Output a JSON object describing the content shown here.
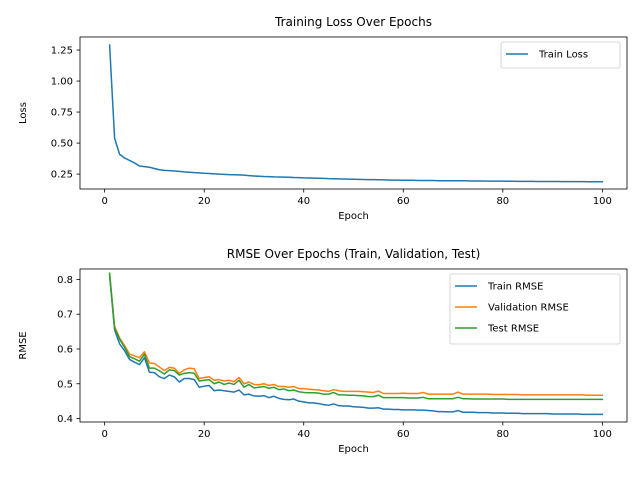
{
  "chart_data": [
    {
      "type": "line",
      "title": "Training Loss Over Epochs",
      "xlabel": "Epoch",
      "ylabel": "Loss",
      "xlim": [
        -4.95,
        104.95
      ],
      "ylim": [
        0.13,
        1.355
      ],
      "xticks": [
        0,
        20,
        40,
        60,
        80,
        100
      ],
      "yticks": [
        0.25,
        0.5,
        0.75,
        1.0,
        1.25
      ],
      "ytick_labels": [
        "0.25",
        "0.50",
        "0.75",
        "1.00",
        "1.25"
      ],
      "legend": "top-right",
      "colors": {
        "Train Loss": "#1f77b4"
      },
      "series": [
        {
          "name": "Train Loss",
          "x": [
            1,
            2,
            3,
            4,
            5,
            6,
            7,
            8,
            9,
            10,
            11,
            12,
            13,
            14,
            15,
            16,
            17,
            18,
            19,
            20,
            21,
            22,
            23,
            24,
            25,
            26,
            27,
            28,
            29,
            30,
            31,
            32,
            33,
            34,
            35,
            36,
            37,
            38,
            39,
            40,
            41,
            42,
            43,
            44,
            45,
            46,
            47,
            48,
            49,
            50,
            51,
            52,
            53,
            54,
            55,
            56,
            57,
            58,
            59,
            60,
            61,
            62,
            63,
            64,
            65,
            66,
            67,
            68,
            69,
            70,
            71,
            72,
            73,
            74,
            75,
            76,
            77,
            78,
            79,
            80,
            81,
            82,
            83,
            84,
            85,
            86,
            87,
            88,
            89,
            90,
            91,
            92,
            93,
            94,
            95,
            96,
            97,
            98,
            99,
            100
          ],
          "values": [
            1.29,
            0.54,
            0.41,
            0.38,
            0.36,
            0.34,
            0.315,
            0.31,
            0.305,
            0.295,
            0.285,
            0.28,
            0.278,
            0.275,
            0.272,
            0.268,
            0.265,
            0.262,
            0.26,
            0.257,
            0.255,
            0.252,
            0.25,
            0.248,
            0.246,
            0.245,
            0.244,
            0.242,
            0.238,
            0.235,
            0.233,
            0.231,
            0.23,
            0.228,
            0.227,
            0.226,
            0.225,
            0.223,
            0.222,
            0.22,
            0.219,
            0.218,
            0.217,
            0.216,
            0.214,
            0.213,
            0.212,
            0.211,
            0.21,
            0.209,
            0.208,
            0.207,
            0.206,
            0.206,
            0.205,
            0.204,
            0.203,
            0.202,
            0.202,
            0.201,
            0.2,
            0.2,
            0.199,
            0.199,
            0.198,
            0.198,
            0.197,
            0.197,
            0.196,
            0.196,
            0.197,
            0.196,
            0.195,
            0.194,
            0.194,
            0.194,
            0.193,
            0.193,
            0.193,
            0.193,
            0.192,
            0.192,
            0.191,
            0.191,
            0.191,
            0.191,
            0.19,
            0.19,
            0.19,
            0.19,
            0.19,
            0.189,
            0.189,
            0.189,
            0.189,
            0.189,
            0.188,
            0.188,
            0.188,
            0.188
          ]
        }
      ]
    },
    {
      "type": "line",
      "title": "RMSE Over Epochs (Train, Validation, Test)",
      "xlabel": "Epoch",
      "ylabel": "RMSE",
      "xlim": [
        -4.95,
        104.95
      ],
      "ylim": [
        0.39,
        0.83
      ],
      "xticks": [
        0,
        20,
        40,
        60,
        80,
        100
      ],
      "yticks": [
        0.4,
        0.5,
        0.6,
        0.7,
        0.8
      ],
      "ytick_labels": [
        "0.4",
        "0.5",
        "0.6",
        "0.7",
        "0.8"
      ],
      "legend": "top-right",
      "colors": {
        "Train RMSE": "#1f77b4",
        "Validation RMSE": "#ff7f0e",
        "Test RMSE": "#2ca02c"
      },
      "series": [
        {
          "name": "Train RMSE",
          "x": [
            1,
            2,
            3,
            4,
            5,
            6,
            7,
            8,
            9,
            10,
            11,
            12,
            13,
            14,
            15,
            16,
            17,
            18,
            19,
            20,
            21,
            22,
            23,
            24,
            25,
            26,
            27,
            28,
            29,
            30,
            31,
            32,
            33,
            34,
            35,
            36,
            37,
            38,
            39,
            40,
            41,
            42,
            43,
            44,
            45,
            46,
            47,
            48,
            49,
            50,
            51,
            52,
            53,
            54,
            55,
            56,
            57,
            58,
            59,
            60,
            61,
            62,
            63,
            64,
            65,
            66,
            67,
            68,
            69,
            70,
            71,
            72,
            73,
            74,
            75,
            76,
            77,
            78,
            79,
            80,
            81,
            82,
            83,
            84,
            85,
            86,
            87,
            88,
            89,
            90,
            91,
            92,
            93,
            94,
            95,
            96,
            97,
            98,
            99,
            100
          ],
          "values": [
            0.81,
            0.655,
            0.615,
            0.595,
            0.57,
            0.562,
            0.555,
            0.575,
            0.533,
            0.532,
            0.52,
            0.515,
            0.525,
            0.52,
            0.505,
            0.515,
            0.515,
            0.512,
            0.49,
            0.493,
            0.495,
            0.48,
            0.482,
            0.48,
            0.478,
            0.476,
            0.482,
            0.468,
            0.47,
            0.465,
            0.464,
            0.466,
            0.46,
            0.464,
            0.458,
            0.455,
            0.454,
            0.456,
            0.45,
            0.448,
            0.445,
            0.445,
            0.443,
            0.44,
            0.438,
            0.442,
            0.437,
            0.436,
            0.436,
            0.434,
            0.433,
            0.432,
            0.43,
            0.43,
            0.431,
            0.427,
            0.427,
            0.426,
            0.426,
            0.425,
            0.425,
            0.425,
            0.424,
            0.424,
            0.423,
            0.422,
            0.42,
            0.42,
            0.419,
            0.419,
            0.423,
            0.418,
            0.418,
            0.418,
            0.417,
            0.417,
            0.417,
            0.416,
            0.416,
            0.416,
            0.415,
            0.415,
            0.415,
            0.414,
            0.414,
            0.414,
            0.414,
            0.414,
            0.414,
            0.413,
            0.413,
            0.413,
            0.413,
            0.413,
            0.413,
            0.412,
            0.412,
            0.412,
            0.412,
            0.412
          ]
        },
        {
          "name": "Validation RMSE",
          "x": [
            1,
            2,
            3,
            4,
            5,
            6,
            7,
            8,
            9,
            10,
            11,
            12,
            13,
            14,
            15,
            16,
            17,
            18,
            19,
            20,
            21,
            22,
            23,
            24,
            25,
            26,
            27,
            28,
            29,
            30,
            31,
            32,
            33,
            34,
            35,
            36,
            37,
            38,
            39,
            40,
            41,
            42,
            43,
            44,
            45,
            46,
            47,
            48,
            49,
            50,
            51,
            52,
            53,
            54,
            55,
            56,
            57,
            58,
            59,
            60,
            61,
            62,
            63,
            64,
            65,
            66,
            67,
            68,
            69,
            70,
            71,
            72,
            73,
            74,
            75,
            76,
            77,
            78,
            79,
            80,
            81,
            82,
            83,
            84,
            85,
            86,
            87,
            88,
            89,
            90,
            91,
            92,
            93,
            94,
            95,
            96,
            97,
            98,
            99,
            100
          ],
          "values": [
            0.815,
            0.665,
            0.632,
            0.61,
            0.585,
            0.58,
            0.575,
            0.592,
            0.56,
            0.558,
            0.548,
            0.538,
            0.547,
            0.545,
            0.53,
            0.54,
            0.545,
            0.543,
            0.515,
            0.518,
            0.52,
            0.51,
            0.512,
            0.508,
            0.51,
            0.506,
            0.518,
            0.5,
            0.505,
            0.498,
            0.497,
            0.5,
            0.495,
            0.498,
            0.492,
            0.492,
            0.49,
            0.492,
            0.486,
            0.486,
            0.484,
            0.483,
            0.482,
            0.48,
            0.478,
            0.483,
            0.48,
            0.478,
            0.478,
            0.478,
            0.478,
            0.477,
            0.476,
            0.475,
            0.479,
            0.472,
            0.472,
            0.472,
            0.472,
            0.473,
            0.472,
            0.472,
            0.472,
            0.475,
            0.47,
            0.47,
            0.47,
            0.47,
            0.47,
            0.47,
            0.476,
            0.47,
            0.47,
            0.47,
            0.47,
            0.47,
            0.47,
            0.469,
            0.469,
            0.469,
            0.469,
            0.469,
            0.469,
            0.468,
            0.468,
            0.468,
            0.468,
            0.468,
            0.468,
            0.468,
            0.468,
            0.468,
            0.468,
            0.468,
            0.468,
            0.468,
            0.467,
            0.467,
            0.467,
            0.467
          ]
        },
        {
          "name": "Test RMSE",
          "x": [
            1,
            2,
            3,
            4,
            5,
            6,
            7,
            8,
            9,
            10,
            11,
            12,
            13,
            14,
            15,
            16,
            17,
            18,
            19,
            20,
            21,
            22,
            23,
            24,
            25,
            26,
            27,
            28,
            29,
            30,
            31,
            32,
            33,
            34,
            35,
            36,
            37,
            38,
            39,
            40,
            41,
            42,
            43,
            44,
            45,
            46,
            47,
            48,
            49,
            50,
            51,
            52,
            53,
            54,
            55,
            56,
            57,
            58,
            59,
            60,
            61,
            62,
            63,
            64,
            65,
            66,
            67,
            68,
            69,
            70,
            71,
            72,
            73,
            74,
            75,
            76,
            77,
            78,
            79,
            80,
            81,
            82,
            83,
            84,
            85,
            86,
            87,
            88,
            89,
            90,
            91,
            92,
            93,
            94,
            95,
            96,
            97,
            98,
            99,
            100
          ],
          "values": [
            0.818,
            0.66,
            0.628,
            0.605,
            0.578,
            0.572,
            0.565,
            0.585,
            0.545,
            0.545,
            0.537,
            0.528,
            0.54,
            0.538,
            0.525,
            0.53,
            0.532,
            0.53,
            0.508,
            0.51,
            0.512,
            0.5,
            0.505,
            0.498,
            0.502,
            0.498,
            0.51,
            0.49,
            0.498,
            0.488,
            0.49,
            0.492,
            0.487,
            0.49,
            0.483,
            0.485,
            0.48,
            0.482,
            0.477,
            0.475,
            0.474,
            0.474,
            0.473,
            0.47,
            0.47,
            0.475,
            0.468,
            0.468,
            0.467,
            0.467,
            0.466,
            0.465,
            0.463,
            0.463,
            0.467,
            0.46,
            0.46,
            0.46,
            0.46,
            0.46,
            0.459,
            0.459,
            0.459,
            0.461,
            0.457,
            0.457,
            0.457,
            0.457,
            0.457,
            0.457,
            0.461,
            0.457,
            0.457,
            0.456,
            0.456,
            0.456,
            0.456,
            0.456,
            0.456,
            0.456,
            0.455,
            0.455,
            0.455,
            0.455,
            0.455,
            0.455,
            0.455,
            0.455,
            0.455,
            0.455,
            0.455,
            0.455,
            0.455,
            0.455,
            0.455,
            0.455,
            0.455,
            0.455,
            0.455,
            0.455
          ]
        }
      ]
    }
  ]
}
